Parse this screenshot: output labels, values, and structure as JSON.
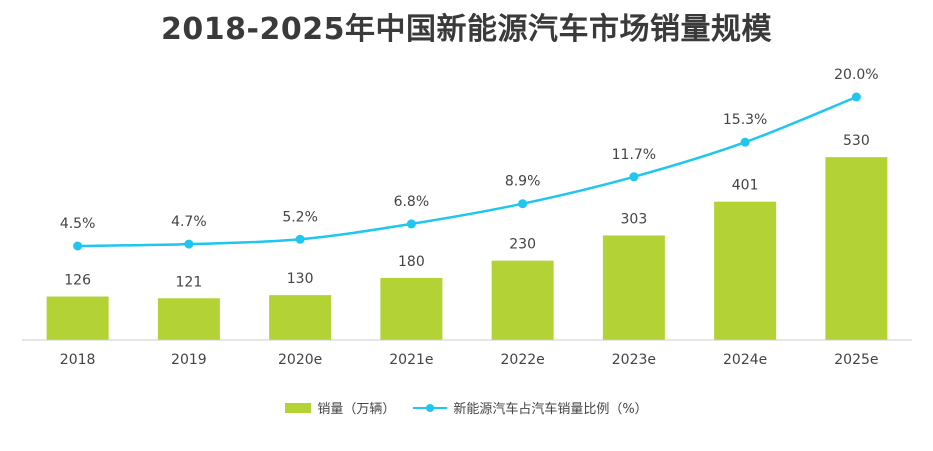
{
  "colors": {
    "bar": "#b2d235",
    "line": "#1fc6ef",
    "text": "#444444",
    "axis": "#cccccc"
  },
  "chart_data": {
    "type": "bar",
    "title": "2018-2025年中国新能源汽车市场销量规模",
    "categories": [
      "2018",
      "2019",
      "2020e",
      "2021e",
      "2022e",
      "2023e",
      "2024e",
      "2025e"
    ],
    "series": [
      {
        "name": "销量（万辆）",
        "type": "bar",
        "values": [
          126,
          121,
          130,
          180,
          230,
          303,
          401,
          530
        ]
      },
      {
        "name": "新能源汽车占汽车销量比例（%）",
        "type": "line",
        "values": [
          4.5,
          4.7,
          5.2,
          6.8,
          8.9,
          11.7,
          15.3,
          20.0
        ],
        "labels": [
          "4.5%",
          "4.7%",
          "5.2%",
          "6.8%",
          "8.9%",
          "11.7%",
          "15.3%",
          "20.0%"
        ]
      }
    ],
    "legend": "bottom-center",
    "grid": false
  }
}
